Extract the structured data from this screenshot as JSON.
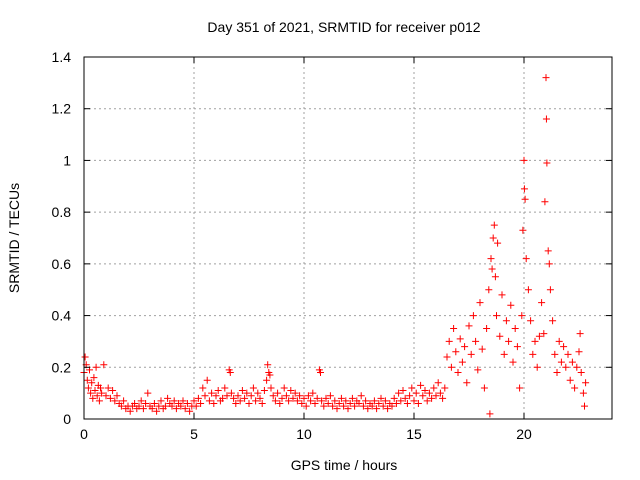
{
  "chart_data": {
    "type": "scatter",
    "title": "Day 351 of 2021, SRMTID for receiver p012",
    "xlabel": "GPS time / hours",
    "ylabel": "SRMTID / TECUs",
    "xlim": [
      0,
      24
    ],
    "ylim": [
      0,
      1.4
    ],
    "xticks": [
      0,
      5,
      10,
      15,
      20
    ],
    "xtick_labels": [
      "0",
      "5",
      "10",
      "15",
      "20"
    ],
    "yticks": [
      0,
      0.2,
      0.4,
      0.6,
      0.8,
      1.0,
      1.2,
      1.4
    ],
    "ytick_labels": [
      "0",
      "0.2",
      "0.4",
      "0.6",
      "0.8",
      "1",
      "1.2",
      "1.4"
    ],
    "grid": true,
    "marker": "+",
    "color": "#ff0000",
    "series": [
      {
        "name": "SRMTID",
        "points": [
          [
            0.0,
            0.18
          ],
          [
            0.05,
            0.24
          ],
          [
            0.1,
            0.21
          ],
          [
            0.15,
            0.15
          ],
          [
            0.2,
            0.12
          ],
          [
            0.25,
            0.19
          ],
          [
            0.3,
            0.1
          ],
          [
            0.35,
            0.14
          ],
          [
            0.4,
            0.08
          ],
          [
            0.45,
            0.16
          ],
          [
            0.5,
            0.11
          ],
          [
            0.55,
            0.2
          ],
          [
            0.6,
            0.09
          ],
          [
            0.65,
            0.13
          ],
          [
            0.7,
            0.07
          ],
          [
            0.75,
            0.12
          ],
          [
            0.8,
            0.1
          ],
          [
            0.9,
            0.21
          ],
          [
            1.0,
            0.09
          ],
          [
            1.1,
            0.12
          ],
          [
            1.2,
            0.08
          ],
          [
            1.3,
            0.11
          ],
          [
            1.4,
            0.07
          ],
          [
            1.5,
            0.09
          ],
          [
            1.6,
            0.06
          ],
          [
            1.7,
            0.05
          ],
          [
            1.8,
            0.07
          ],
          [
            1.9,
            0.04
          ],
          [
            2.0,
            0.05
          ],
          [
            2.1,
            0.03
          ],
          [
            2.2,
            0.05
          ],
          [
            2.3,
            0.06
          ],
          [
            2.4,
            0.04
          ],
          [
            2.5,
            0.05
          ],
          [
            2.6,
            0.07
          ],
          [
            2.7,
            0.04
          ],
          [
            2.8,
            0.06
          ],
          [
            2.9,
            0.1
          ],
          [
            3.0,
            0.05
          ],
          [
            3.1,
            0.04
          ],
          [
            3.2,
            0.06
          ],
          [
            3.3,
            0.03
          ],
          [
            3.4,
            0.05
          ],
          [
            3.5,
            0.07
          ],
          [
            3.6,
            0.04
          ],
          [
            3.7,
            0.05
          ],
          [
            3.8,
            0.08
          ],
          [
            3.9,
            0.06
          ],
          [
            4.0,
            0.05
          ],
          [
            4.1,
            0.07
          ],
          [
            4.2,
            0.04
          ],
          [
            4.3,
            0.06
          ],
          [
            4.4,
            0.05
          ],
          [
            4.5,
            0.07
          ],
          [
            4.6,
            0.04
          ],
          [
            4.7,
            0.06
          ],
          [
            4.8,
            0.03
          ],
          [
            4.9,
            0.05
          ],
          [
            5.0,
            0.07
          ],
          [
            5.1,
            0.05
          ],
          [
            5.2,
            0.08
          ],
          [
            5.3,
            0.06
          ],
          [
            5.4,
            0.12
          ],
          [
            5.5,
            0.09
          ],
          [
            5.6,
            0.15
          ],
          [
            5.7,
            0.07
          ],
          [
            5.8,
            0.1
          ],
          [
            5.9,
            0.06
          ],
          [
            6.0,
            0.09
          ],
          [
            6.1,
            0.11
          ],
          [
            6.2,
            0.07
          ],
          [
            6.3,
            0.08
          ],
          [
            6.4,
            0.12
          ],
          [
            6.5,
            0.09
          ],
          [
            6.6,
            0.19
          ],
          [
            6.65,
            0.18
          ],
          [
            6.7,
            0.1
          ],
          [
            6.8,
            0.08
          ],
          [
            6.9,
            0.06
          ],
          [
            7.0,
            0.09
          ],
          [
            7.1,
            0.07
          ],
          [
            7.2,
            0.11
          ],
          [
            7.3,
            0.08
          ],
          [
            7.4,
            0.1
          ],
          [
            7.5,
            0.06
          ],
          [
            7.6,
            0.09
          ],
          [
            7.7,
            0.12
          ],
          [
            7.8,
            0.07
          ],
          [
            7.9,
            0.1
          ],
          [
            8.0,
            0.08
          ],
          [
            8.1,
            0.06
          ],
          [
            8.2,
            0.11
          ],
          [
            8.3,
            0.15
          ],
          [
            8.35,
            0.21
          ],
          [
            8.4,
            0.18
          ],
          [
            8.45,
            0.17
          ],
          [
            8.5,
            0.12
          ],
          [
            8.6,
            0.09
          ],
          [
            8.7,
            0.07
          ],
          [
            8.8,
            0.1
          ],
          [
            8.9,
            0.06
          ],
          [
            9.0,
            0.08
          ],
          [
            9.1,
            0.12
          ],
          [
            9.2,
            0.09
          ],
          [
            9.3,
            0.07
          ],
          [
            9.4,
            0.11
          ],
          [
            9.5,
            0.08
          ],
          [
            9.6,
            0.1
          ],
          [
            9.7,
            0.07
          ],
          [
            9.8,
            0.09
          ],
          [
            9.9,
            0.06
          ],
          [
            10.0,
            0.08
          ],
          [
            10.1,
            0.05
          ],
          [
            10.2,
            0.09
          ],
          [
            10.3,
            0.07
          ],
          [
            10.4,
            0.1
          ],
          [
            10.5,
            0.06
          ],
          [
            10.6,
            0.08
          ],
          [
            10.7,
            0.19
          ],
          [
            10.75,
            0.18
          ],
          [
            10.8,
            0.07
          ],
          [
            10.9,
            0.05
          ],
          [
            11.0,
            0.08
          ],
          [
            11.1,
            0.06
          ],
          [
            11.2,
            0.09
          ],
          [
            11.3,
            0.05
          ],
          [
            11.4,
            0.07
          ],
          [
            11.5,
            0.04
          ],
          [
            11.6,
            0.06
          ],
          [
            11.7,
            0.08
          ],
          [
            11.8,
            0.05
          ],
          [
            11.9,
            0.07
          ],
          [
            12.0,
            0.04
          ],
          [
            12.1,
            0.06
          ],
          [
            12.2,
            0.08
          ],
          [
            12.3,
            0.05
          ],
          [
            12.4,
            0.07
          ],
          [
            12.5,
            0.06
          ],
          [
            12.6,
            0.09
          ],
          [
            12.7,
            0.05
          ],
          [
            12.8,
            0.07
          ],
          [
            12.9,
            0.04
          ],
          [
            13.0,
            0.06
          ],
          [
            13.1,
            0.05
          ],
          [
            13.2,
            0.07
          ],
          [
            13.3,
            0.04
          ],
          [
            13.4,
            0.06
          ],
          [
            13.5,
            0.08
          ],
          [
            13.6,
            0.05
          ],
          [
            13.7,
            0.07
          ],
          [
            13.8,
            0.04
          ],
          [
            13.9,
            0.06
          ],
          [
            14.0,
            0.05
          ],
          [
            14.1,
            0.08
          ],
          [
            14.2,
            0.06
          ],
          [
            14.3,
            0.1
          ],
          [
            14.4,
            0.07
          ],
          [
            14.5,
            0.11
          ],
          [
            14.6,
            0.08
          ],
          [
            14.7,
            0.06
          ],
          [
            14.8,
            0.09
          ],
          [
            14.9,
            0.12
          ],
          [
            15.0,
            0.07
          ],
          [
            15.1,
            0.1
          ],
          [
            15.2,
            0.06
          ],
          [
            15.3,
            0.13
          ],
          [
            15.4,
            0.09
          ],
          [
            15.5,
            0.11
          ],
          [
            15.6,
            0.07
          ],
          [
            15.7,
            0.1
          ],
          [
            15.8,
            0.08
          ],
          [
            15.9,
            0.12
          ],
          [
            16.0,
            0.09
          ],
          [
            16.1,
            0.14
          ],
          [
            16.2,
            0.1
          ],
          [
            16.3,
            0.08
          ],
          [
            16.4,
            0.12
          ],
          [
            16.5,
            0.24
          ],
          [
            16.6,
            0.3
          ],
          [
            16.7,
            0.2
          ],
          [
            16.8,
            0.35
          ],
          [
            16.9,
            0.26
          ],
          [
            17.0,
            0.18
          ],
          [
            17.1,
            0.31
          ],
          [
            17.2,
            0.22
          ],
          [
            17.3,
            0.28
          ],
          [
            17.4,
            0.14
          ],
          [
            17.5,
            0.36
          ],
          [
            17.6,
            0.25
          ],
          [
            17.7,
            0.4
          ],
          [
            17.8,
            0.3
          ],
          [
            17.9,
            0.19
          ],
          [
            18.0,
            0.45
          ],
          [
            18.1,
            0.27
          ],
          [
            18.2,
            0.12
          ],
          [
            18.3,
            0.35
          ],
          [
            18.4,
            0.5
          ],
          [
            18.45,
            0.02
          ],
          [
            18.5,
            0.62
          ],
          [
            18.55,
            0.58
          ],
          [
            18.6,
            0.7
          ],
          [
            18.65,
            0.75
          ],
          [
            18.7,
            0.55
          ],
          [
            18.75,
            0.4
          ],
          [
            18.8,
            0.68
          ],
          [
            18.9,
            0.32
          ],
          [
            19.0,
            0.48
          ],
          [
            19.1,
            0.25
          ],
          [
            19.2,
            0.38
          ],
          [
            19.3,
            0.3
          ],
          [
            19.4,
            0.44
          ],
          [
            19.5,
            0.22
          ],
          [
            19.6,
            0.35
          ],
          [
            19.7,
            0.28
          ],
          [
            19.8,
            0.12
          ],
          [
            19.9,
            0.4
          ],
          [
            19.95,
            0.73
          ],
          [
            20.0,
            1.0
          ],
          [
            20.02,
            0.89
          ],
          [
            20.05,
            0.85
          ],
          [
            20.1,
            0.62
          ],
          [
            20.2,
            0.5
          ],
          [
            20.3,
            0.38
          ],
          [
            20.4,
            0.25
          ],
          [
            20.5,
            0.3
          ],
          [
            20.6,
            0.2
          ],
          [
            20.7,
            0.32
          ],
          [
            20.8,
            0.45
          ],
          [
            20.9,
            0.33
          ],
          [
            20.95,
            0.84
          ],
          [
            21.0,
            1.32
          ],
          [
            21.02,
            1.16
          ],
          [
            21.04,
            0.99
          ],
          [
            21.1,
            0.65
          ],
          [
            21.15,
            0.6
          ],
          [
            21.2,
            0.5
          ],
          [
            21.3,
            0.38
          ],
          [
            21.4,
            0.25
          ],
          [
            21.5,
            0.18
          ],
          [
            21.6,
            0.3
          ],
          [
            21.7,
            0.22
          ],
          [
            21.8,
            0.28
          ],
          [
            21.9,
            0.2
          ],
          [
            22.0,
            0.25
          ],
          [
            22.1,
            0.15
          ],
          [
            22.2,
            0.22
          ],
          [
            22.3,
            0.12
          ],
          [
            22.4,
            0.2
          ],
          [
            22.5,
            0.26
          ],
          [
            22.55,
            0.33
          ],
          [
            22.6,
            0.18
          ],
          [
            22.7,
            0.1
          ],
          [
            22.75,
            0.05
          ],
          [
            22.8,
            0.14
          ]
        ]
      }
    ]
  }
}
